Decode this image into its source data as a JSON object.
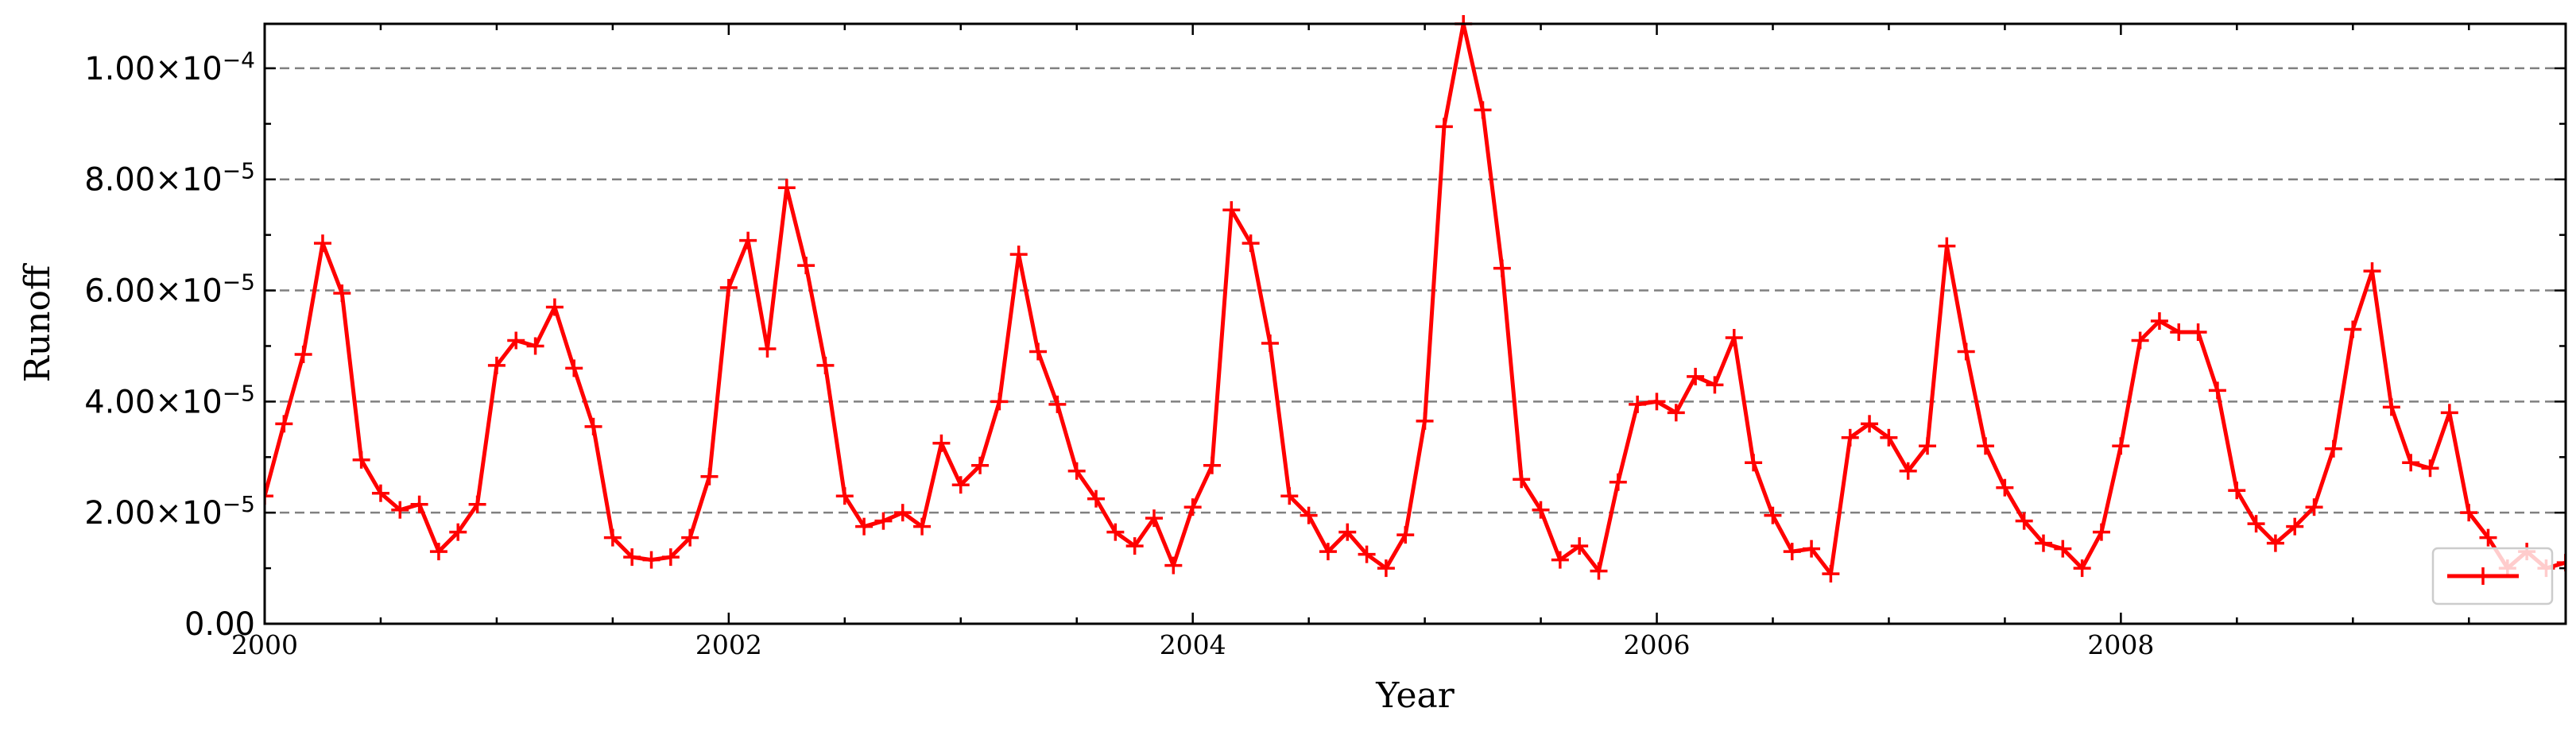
{
  "chart_data": {
    "type": "line",
    "title": "",
    "xlabel": "Year",
    "ylabel": "Runoff",
    "xlim": [
      2000.0,
      2009.917
    ],
    "ylim": [
      0,
      0.000108
    ],
    "grid": "y-dashed",
    "legend_position": "lower-right",
    "x_ticks": [
      2000,
      2002,
      2004,
      2006,
      2008
    ],
    "x_tick_labels": [
      "2000",
      "2002",
      "2004",
      "2006",
      "2008"
    ],
    "y_ticks": [
      0,
      2e-05,
      4e-05,
      6e-05,
      8e-05,
      0.0001
    ],
    "y_tick_labels": [
      {
        "mantissa": "0.00",
        "exp": ""
      },
      {
        "mantissa": "2.00×10",
        "exp": "−5"
      },
      {
        "mantissa": "4.00×10",
        "exp": "−5"
      },
      {
        "mantissa": "6.00×10",
        "exp": "−5"
      },
      {
        "mantissa": "8.00×10",
        "exp": "−5"
      },
      {
        "mantissa": "1.00×10",
        "exp": "−4"
      }
    ],
    "x_start": 2000.0,
    "x_step": 0.08333,
    "series": [
      {
        "color": "#ff0000",
        "marker": "plus",
        "values": [
          2.3e-05,
          3.6e-05,
          4.85e-05,
          6.85e-05,
          5.95e-05,
          2.95e-05,
          2.35e-05,
          2.05e-05,
          2.15e-05,
          1.3e-05,
          1.65e-05,
          2.15e-05,
          4.65e-05,
          5.1e-05,
          5e-05,
          5.7e-05,
          4.6e-05,
          3.55e-05,
          1.55e-05,
          1.2e-05,
          1.15e-05,
          1.2e-05,
          1.55e-05,
          2.65e-05,
          6.05e-05,
          6.9e-05,
          4.95e-05,
          7.85e-05,
          6.45e-05,
          4.65e-05,
          2.3e-05,
          1.75e-05,
          1.85e-05,
          2e-05,
          1.75e-05,
          3.25e-05,
          2.5e-05,
          2.85e-05,
          4e-05,
          6.65e-05,
          4.9e-05,
          3.95e-05,
          2.75e-05,
          2.25e-05,
          1.65e-05,
          1.4e-05,
          1.9e-05,
          1.05e-05,
          2.1e-05,
          2.85e-05,
          7.45e-05,
          6.85e-05,
          5.05e-05,
          2.3e-05,
          1.95e-05,
          1.3e-05,
          1.65e-05,
          1.25e-05,
          1e-05,
          1.6e-05,
          3.65e-05,
          8.95e-05,
          0.000108,
          9.25e-05,
          6.4e-05,
          2.6e-05,
          2.05e-05,
          1.15e-05,
          1.4e-05,
          9.5e-06,
          2.55e-05,
          3.95e-05,
          4e-05,
          3.8e-05,
          4.45e-05,
          4.3e-05,
          5.15e-05,
          2.9e-05,
          1.95e-05,
          1.3e-05,
          1.35e-05,
          9e-06,
          3.35e-05,
          3.6e-05,
          3.35e-05,
          2.75e-05,
          3.2e-05,
          6.8e-05,
          4.9e-05,
          3.2e-05,
          2.45e-05,
          1.85e-05,
          1.45e-05,
          1.35e-05,
          1e-05,
          1.65e-05,
          3.2e-05,
          5.1e-05,
          5.45e-05,
          5.25e-05,
          5.25e-05,
          4.2e-05,
          2.4e-05,
          1.8e-05,
          1.45e-05,
          1.75e-05,
          2.1e-05,
          3.15e-05,
          5.3e-05,
          6.35e-05,
          3.9e-05,
          2.9e-05,
          2.8e-05,
          3.8e-05,
          2e-05,
          1.55e-05,
          1e-05,
          1.3e-05,
          1e-05,
          1.1e-05
        ]
      }
    ]
  }
}
